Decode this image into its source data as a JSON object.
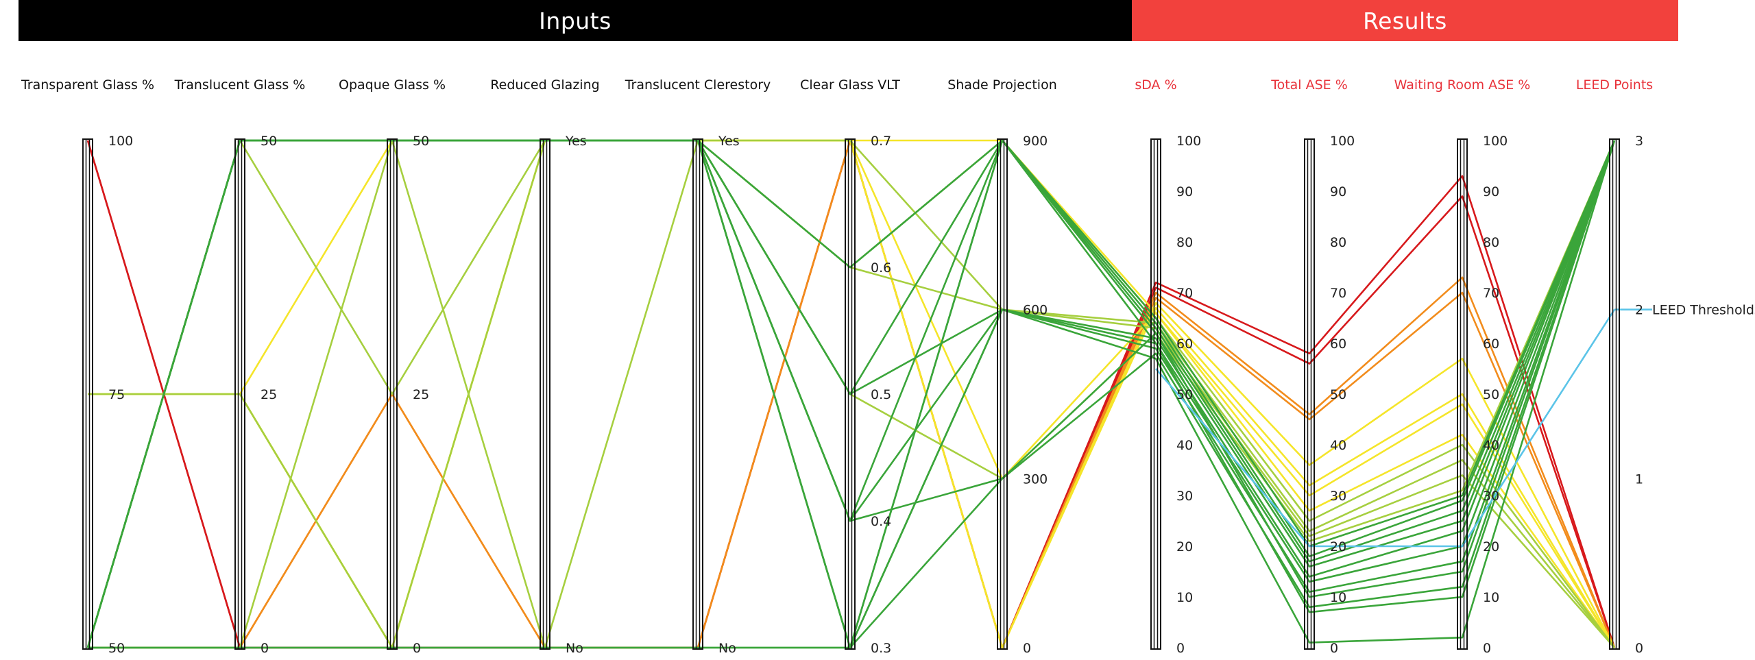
{
  "header": {
    "inputs_label": "Inputs",
    "results_label": "Results"
  },
  "colors": {
    "inputs_header": "#000000",
    "results_header": "#f2413d",
    "result_axis_title": "#e8323a",
    "input_axis_title": "#111111",
    "threshold_line": "#5bc4e8",
    "scale": [
      "#d7191c",
      "#f28c1c",
      "#f5e52a",
      "#a6cf3f",
      "#3aa53a"
    ]
  },
  "chart_data": {
    "type": "parallel_coordinates",
    "axes": [
      {
        "id": "transparent",
        "label": "Transparent Glass %",
        "group": "input",
        "ticks": [
          {
            "v": 100,
            "t": "100"
          },
          {
            "v": 75,
            "t": "75"
          },
          {
            "v": 50,
            "t": "50"
          }
        ],
        "range": [
          50,
          100
        ]
      },
      {
        "id": "translucent",
        "label": "Translucent Glass %",
        "group": "input",
        "ticks": [
          {
            "v": 50,
            "t": "50"
          },
          {
            "v": 25,
            "t": "25"
          },
          {
            "v": 0,
            "t": "0"
          }
        ],
        "range": [
          0,
          50
        ]
      },
      {
        "id": "opaque",
        "label": "Opaque Glass %",
        "group": "input",
        "ticks": [
          {
            "v": 50,
            "t": "50"
          },
          {
            "v": 25,
            "t": "25"
          },
          {
            "v": 0,
            "t": "0"
          }
        ],
        "range": [
          0,
          50
        ]
      },
      {
        "id": "reduced",
        "label": "Reduced Glazing",
        "group": "input",
        "ticks": [
          {
            "v": 1,
            "t": "Yes"
          },
          {
            "v": 0,
            "t": "No"
          }
        ],
        "range": [
          0,
          1
        ]
      },
      {
        "id": "clerestory",
        "label": "Translucent Clerestory",
        "group": "input",
        "ticks": [
          {
            "v": 1,
            "t": "Yes"
          },
          {
            "v": 0,
            "t": "No"
          }
        ],
        "range": [
          0,
          1
        ]
      },
      {
        "id": "vlt",
        "label": "Clear Glass VLT",
        "group": "input",
        "ticks": [
          {
            "v": 0.7,
            "t": "0.7"
          },
          {
            "v": 0.6,
            "t": "0.6"
          },
          {
            "v": 0.5,
            "t": "0.5"
          },
          {
            "v": 0.4,
            "t": "0.4"
          },
          {
            "v": 0.3,
            "t": "0.3"
          }
        ],
        "range": [
          0.3,
          0.7
        ]
      },
      {
        "id": "shade",
        "label": "Shade Projection",
        "group": "input",
        "ticks": [
          {
            "v": 900,
            "t": "900"
          },
          {
            "v": 600,
            "t": "600"
          },
          {
            "v": 300,
            "t": "300"
          },
          {
            "v": 0,
            "t": "0"
          }
        ],
        "range": [
          0,
          900
        ]
      },
      {
        "id": "sda",
        "label": "sDA  %",
        "group": "result",
        "ticks": [
          {
            "v": 100,
            "t": "100"
          },
          {
            "v": 90,
            "t": "90"
          },
          {
            "v": 80,
            "t": "80"
          },
          {
            "v": 70,
            "t": "70"
          },
          {
            "v": 60,
            "t": "60"
          },
          {
            "v": 50,
            "t": "50"
          },
          {
            "v": 40,
            "t": "40"
          },
          {
            "v": 30,
            "t": "30"
          },
          {
            "v": 20,
            "t": "20"
          },
          {
            "v": 10,
            "t": "10"
          },
          {
            "v": 0,
            "t": "0"
          }
        ],
        "range": [
          0,
          100
        ]
      },
      {
        "id": "ase",
        "label": "Total ASE %",
        "group": "result",
        "ticks": [
          {
            "v": 100,
            "t": "100"
          },
          {
            "v": 90,
            "t": "90"
          },
          {
            "v": 80,
            "t": "80"
          },
          {
            "v": 70,
            "t": "70"
          },
          {
            "v": 60,
            "t": "60"
          },
          {
            "v": 50,
            "t": "50"
          },
          {
            "v": 40,
            "t": "40"
          },
          {
            "v": 30,
            "t": "30"
          },
          {
            "v": 20,
            "t": "20"
          },
          {
            "v": 10,
            "t": "10"
          },
          {
            "v": 0,
            "t": "0"
          }
        ],
        "range": [
          0,
          100
        ]
      },
      {
        "id": "wase",
        "label": "Waiting Room ASE %",
        "group": "result",
        "ticks": [
          {
            "v": 100,
            "t": "100"
          },
          {
            "v": 90,
            "t": "90"
          },
          {
            "v": 80,
            "t": "80"
          },
          {
            "v": 70,
            "t": "70"
          },
          {
            "v": 60,
            "t": "60"
          },
          {
            "v": 50,
            "t": "50"
          },
          {
            "v": 40,
            "t": "40"
          },
          {
            "v": 30,
            "t": "30"
          },
          {
            "v": 20,
            "t": "20"
          },
          {
            "v": 10,
            "t": "10"
          },
          {
            "v": 0,
            "t": "0"
          }
        ],
        "range": [
          0,
          100
        ]
      },
      {
        "id": "leed",
        "label": "LEED Points",
        "group": "result",
        "ticks": [
          {
            "v": 3,
            "t": "3"
          },
          {
            "v": 2,
            "t": "2"
          },
          {
            "v": 1,
            "t": "1"
          },
          {
            "v": 0,
            "t": "0"
          }
        ],
        "range": [
          0,
          3
        ]
      }
    ],
    "lines": [
      {
        "color": "#d7191c",
        "values": [
          100,
          0,
          0,
          0,
          0,
          0.7,
          0,
          72,
          58,
          93,
          0
        ]
      },
      {
        "color": "#d7191c",
        "values": [
          100,
          0,
          0,
          0,
          0,
          0.7,
          0,
          71,
          56,
          89,
          0
        ]
      },
      {
        "color": "#f28c1c",
        "values": [
          50,
          0,
          25,
          0,
          0,
          0.7,
          0,
          70,
          46,
          73,
          0
        ]
      },
      {
        "color": "#f28c1c",
        "values": [
          50,
          0,
          25,
          0,
          0,
          0.7,
          0,
          69,
          45,
          70,
          0
        ]
      },
      {
        "color": "#f5e52a",
        "values": [
          75,
          25,
          0,
          1,
          1,
          0.7,
          0,
          68,
          36,
          57,
          0
        ]
      },
      {
        "color": "#f5e52a",
        "values": [
          75,
          25,
          0,
          1,
          1,
          0.7,
          0,
          67,
          32,
          50,
          0
        ]
      },
      {
        "color": "#f5e52a",
        "values": [
          75,
          25,
          50,
          1,
          1,
          0.7,
          900,
          66,
          30,
          48,
          0
        ]
      },
      {
        "color": "#f5e52a",
        "values": [
          75,
          25,
          0,
          1,
          1,
          0.7,
          300,
          66,
          27,
          42,
          0
        ]
      },
      {
        "color": "#a6cf3f",
        "values": [
          75,
          25,
          0,
          1,
          1,
          0.6,
          900,
          65,
          25,
          40,
          0
        ]
      },
      {
        "color": "#a6cf3f",
        "values": [
          50,
          50,
          25,
          1,
          1,
          0.6,
          600,
          64,
          23,
          37,
          0
        ]
      },
      {
        "color": "#a6cf3f",
        "values": [
          50,
          50,
          50,
          1,
          1,
          0.7,
          600,
          63,
          22,
          34,
          0
        ]
      },
      {
        "color": "#a6cf3f",
        "values": [
          50,
          0,
          50,
          0,
          1,
          0.5,
          300,
          62,
          21,
          31,
          3
        ]
      },
      {
        "color": "#3aa53a",
        "values": [
          50,
          50,
          50,
          1,
          1,
          0.6,
          900,
          65,
          20,
          30,
          3
        ]
      },
      {
        "color": "#3aa53a",
        "values": [
          50,
          50,
          50,
          1,
          1,
          0.5,
          900,
          64,
          18,
          29,
          3
        ]
      },
      {
        "color": "#3aa53a",
        "values": [
          50,
          50,
          50,
          1,
          1,
          0.4,
          900,
          63,
          17,
          27,
          3
        ]
      },
      {
        "color": "#3aa53a",
        "values": [
          50,
          50,
          50,
          1,
          1,
          0.3,
          900,
          62,
          16,
          25,
          3
        ]
      },
      {
        "color": "#3aa53a",
        "values": [
          50,
          50,
          50,
          1,
          1,
          0.5,
          600,
          61,
          14,
          23,
          3
        ]
      },
      {
        "color": "#3aa53a",
        "values": [
          50,
          50,
          50,
          1,
          1,
          0.4,
          600,
          60,
          13,
          20,
          3
        ]
      },
      {
        "color": "#3aa53a",
        "values": [
          50,
          50,
          50,
          1,
          1,
          0.3,
          600,
          59,
          11,
          17,
          3
        ]
      },
      {
        "color": "#3aa53a",
        "values": [
          50,
          50,
          50,
          1,
          1,
          0.4,
          300,
          62,
          10,
          15,
          3
        ]
      },
      {
        "color": "#3aa53a",
        "values": [
          50,
          50,
          50,
          1,
          1,
          0.3,
          300,
          58,
          8,
          12,
          3
        ]
      },
      {
        "color": "#3aa53a",
        "values": [
          50,
          0,
          0,
          0,
          0,
          0.3,
          900,
          60,
          7,
          10,
          3
        ]
      },
      {
        "color": "#3aa53a",
        "values": [
          50,
          0,
          0,
          0,
          0,
          0.3,
          600,
          57,
          1,
          2,
          3
        ]
      },
      {
        "color": "#5bc4e8",
        "values": [
          null,
          null,
          null,
          null,
          null,
          null,
          null,
          55,
          20,
          20,
          2
        ]
      }
    ],
    "annotations": [
      {
        "text": "LEED Thresholds",
        "axis": "leed",
        "value": 2
      }
    ]
  }
}
